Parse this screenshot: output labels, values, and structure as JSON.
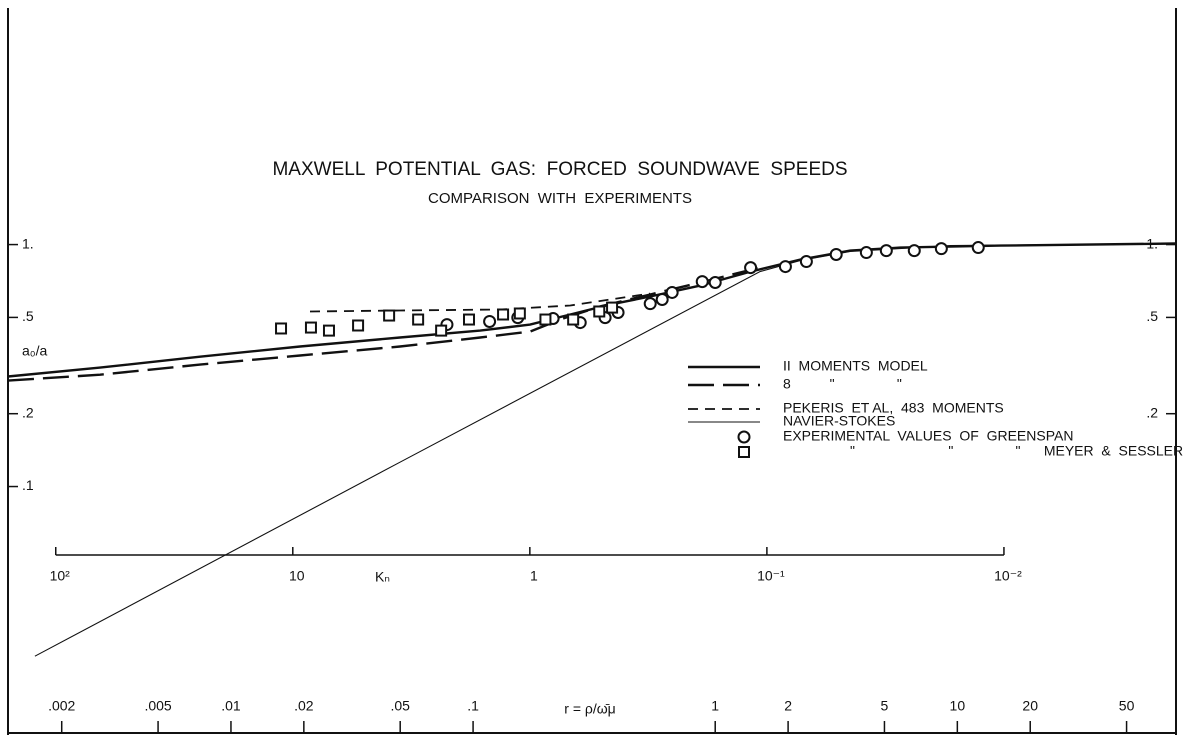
{
  "chart_data": {
    "type": "line",
    "title": "MAXWELL  POTENTIAL  GAS:  FORCED  SOUNDWAVE  SPEEDS",
    "subtitle": "COMPARISON  WITH  EXPERIMENTS",
    "xlabel": "r = ρ/ω̄μ",
    "ylabel": "a₀/a",
    "x2label": "Kₙ",
    "xscale": "log",
    "yscale": "log",
    "x2scale": "log",
    "xlim": [
      0.0012,
      80
    ],
    "ylim": [
      0.0094,
      9.5
    ],
    "x2lim": [
      159,
      0.00188
    ],
    "xticks": [
      {
        "value": 0.002,
        "label": ".002"
      },
      {
        "value": 0.005,
        "label": ".005"
      },
      {
        "value": 0.01,
        "label": ".01"
      },
      {
        "value": 0.02,
        "label": ".02"
      },
      {
        "value": 0.05,
        "label": ".05"
      },
      {
        "value": 0.1,
        "label": ".1"
      },
      1,
      2,
      5,
      10,
      20,
      50
    ],
    "x2ticks": [
      {
        "value": 100,
        "label": "10²"
      },
      10,
      1,
      {
        "value": 0.1,
        "label": "10⁻¹"
      },
      {
        "value": 0.01,
        "label": "10⁻²"
      }
    ],
    "yticks": [
      {
        "value": 1,
        "label": "1."
      },
      {
        "value": 0.5,
        "label": ".5"
      },
      {
        "value": 0.2,
        "label": ".2"
      },
      {
        "value": 0.1,
        "label": ".1"
      }
    ],
    "y2ticks": [
      {
        "value": 1,
        "label": "1."
      },
      {
        "value": 0.5,
        "label": ".5"
      },
      {
        "value": 0.2,
        "label": ".2"
      }
    ],
    "color": "#111111",
    "series": [
      {
        "name": "II  MOMENTS  MODEL",
        "kind": "line",
        "dash": "solid",
        "width": 2.4,
        "x": [
          0.0012,
          0.00288,
          0.00745,
          0.0193,
          0.0499,
          0.107,
          0.172,
          0.252,
          0.368,
          0.539,
          0.867,
          1.4,
          2.25,
          3.61,
          5.81,
          15.1,
          80
        ],
        "values": [
          0.285,
          0.31,
          0.344,
          0.379,
          0.413,
          0.441,
          0.467,
          0.514,
          0.565,
          0.61,
          0.677,
          0.773,
          0.867,
          0.944,
          0.972,
          0.99,
          1.01
        ]
      },
      {
        "name": "8          \"                \"",
        "kind": "line",
        "dash": "long",
        "width": 2.4,
        "x": [
          0.0012,
          0.00288,
          0.00745,
          0.0193,
          0.0499,
          0.107,
          0.172,
          0.229,
          0.335,
          0.539,
          0.867,
          1.53
        ],
        "values": [
          0.274,
          0.29,
          0.319,
          0.348,
          0.379,
          0.413,
          0.437,
          0.49,
          0.555,
          0.622,
          0.697,
          0.803
        ]
      },
      {
        "name": "PEKERIS  ET AL,  483  MOMENTS",
        "kind": "line",
        "dash": "short",
        "width": 1.8,
        "x": [
          0.0212,
          0.0499,
          0.129,
          0.252,
          0.368,
          0.539
        ],
        "values": [
          0.529,
          0.534,
          0.539,
          0.56,
          0.593,
          0.627
        ]
      },
      {
        "name": "NAVIER-STOKES",
        "kind": "line",
        "dash": "solid",
        "width": 1.1,
        "x": [
          0.00155,
          0.0499,
          1.53,
          2.25,
          3.61,
          9.35,
          80
        ],
        "values": [
          0.0199,
          0.126,
          0.773,
          0.859,
          0.936,
          0.99,
          1.01
        ]
      },
      {
        "name": "EXPERIMENTAL  VALUES  OF  GREENSPAN",
        "kind": "scatter",
        "marker": "circle",
        "x": [
          0.078,
          0.117,
          0.153,
          0.214,
          0.277,
          0.351,
          0.397,
          0.539,
          0.604,
          0.664,
          0.884,
          1.0,
          1.4,
          1.95,
          2.38,
          3.16,
          4.21,
          5.09,
          6.64,
          8.59,
          12.2
        ],
        "values": [
          0.467,
          0.481,
          0.499,
          0.495,
          0.476,
          0.499,
          0.524,
          0.57,
          0.593,
          0.634,
          0.703,
          0.697,
          0.803,
          0.811,
          0.851,
          0.91,
          0.927,
          0.944,
          0.944,
          0.962,
          0.972
        ]
      },
      {
        "name": "\"                        \"                \"      MEYER  &  SESSLER",
        "kind": "scatter",
        "marker": "square",
        "x": [
          0.0161,
          0.0214,
          0.0254,
          0.0335,
          0.045,
          0.0593,
          0.0738,
          0.0962,
          0.133,
          0.156,
          0.199,
          0.259,
          0.332,
          0.375
        ],
        "values": [
          0.45,
          0.454,
          0.441,
          0.463,
          0.509,
          0.49,
          0.441,
          0.49,
          0.514,
          0.519,
          0.49,
          0.49,
          0.529,
          0.549
        ]
      }
    ]
  }
}
